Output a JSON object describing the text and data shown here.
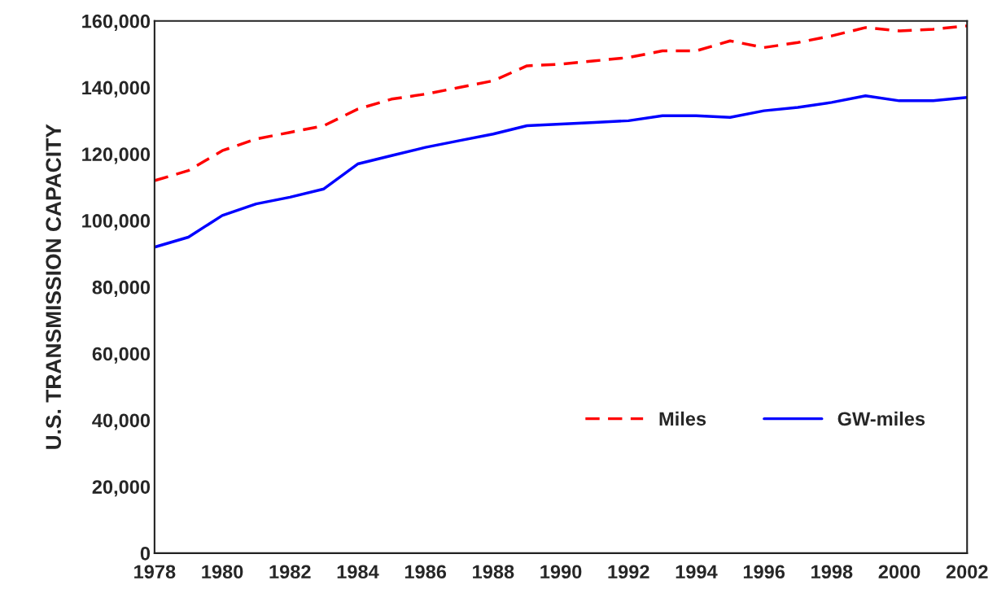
{
  "chart_data": {
    "type": "line",
    "ylabel": "U.S. TRANSMISSION CAPACITY",
    "x": [
      1978,
      1979,
      1980,
      1981,
      1982,
      1983,
      1984,
      1985,
      1986,
      1987,
      1988,
      1989,
      1990,
      1991,
      1992,
      1993,
      1994,
      1995,
      1996,
      1997,
      1998,
      1999,
      2000,
      2001,
      2002
    ],
    "series": [
      {
        "name": "Miles",
        "color": "#ff0000",
        "line_style": "dashed",
        "values": [
          112000,
          115000,
          121000,
          124500,
          126500,
          128500,
          133500,
          136500,
          138000,
          140000,
          142000,
          146500,
          147000,
          148000,
          149000,
          151000,
          151000,
          154000,
          152000,
          153500,
          155500,
          158000,
          157000,
          157500,
          158500
        ]
      },
      {
        "name": "GW-miles",
        "color": "#0000ff",
        "line_style": "solid",
        "values": [
          92000,
          95000,
          101500,
          105000,
          107000,
          109500,
          117000,
          119500,
          122000,
          124000,
          126000,
          128500,
          129000,
          129500,
          130000,
          131500,
          131500,
          131000,
          133000,
          134000,
          135500,
          137500,
          136000,
          136000,
          137000
        ]
      }
    ],
    "xlim": [
      1978,
      2002
    ],
    "xticks": [
      1978,
      1980,
      1982,
      1984,
      1986,
      1988,
      1990,
      1992,
      1994,
      1996,
      1998,
      2000,
      2002
    ],
    "ylim": [
      0,
      160000
    ],
    "yticks": [
      {
        "value": 0,
        "label": "0"
      },
      {
        "value": 20000,
        "label": "20,000"
      },
      {
        "value": 40000,
        "label": "40,000"
      },
      {
        "value": 60000,
        "label": "60,000"
      },
      {
        "value": 80000,
        "label": "80,000"
      },
      {
        "value": 100000,
        "label": "100,000"
      },
      {
        "value": 120000,
        "label": "120,000"
      },
      {
        "value": 140000,
        "label": "140,000"
      },
      {
        "value": 160000,
        "label": "160,000"
      }
    ],
    "grid": false,
    "legend": "bottom right"
  }
}
